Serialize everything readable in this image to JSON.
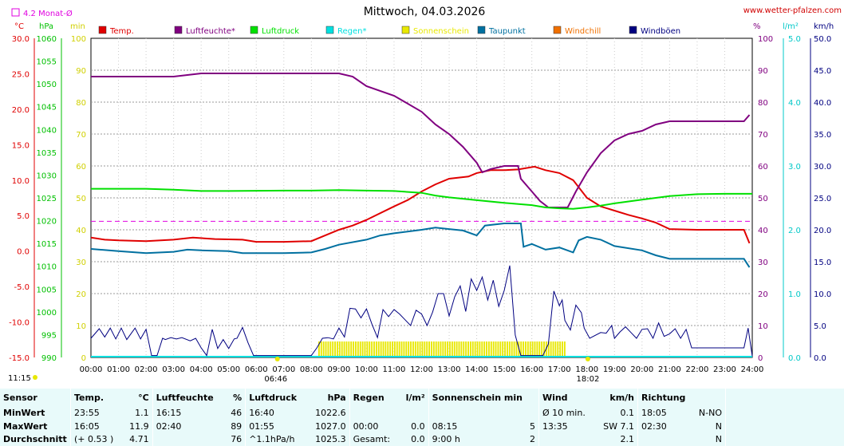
{
  "header": {
    "title": "Mittwoch, 04.03.2026",
    "site": "www.wetter-pfalzen.com",
    "monthly_avg_label": "4.2 Monat-Ø"
  },
  "units": {
    "temp": "°C",
    "pressure": "hPa",
    "minutes": "min",
    "percent": "%",
    "rain": "l/m²",
    "wind": "km/h"
  },
  "legend": [
    {
      "label": "Temp.",
      "color": "#e00000"
    },
    {
      "label": "Luftfeuchte*",
      "color": "#800080"
    },
    {
      "label": "Luftdruck",
      "color": "#00e000"
    },
    {
      "label": "Regen*",
      "color": "#00e0e0"
    },
    {
      "label": "Sonnenschein",
      "color": "#e8e800"
    },
    {
      "label": "Taupunkt",
      "color": "#0070a0"
    },
    {
      "label": "Windchill",
      "color": "#f07000"
    },
    {
      "label": "Windböen",
      "color": "#000080"
    }
  ],
  "axes": {
    "temp_ticks": [
      "30.0",
      "25.0",
      "20.0",
      "15.0",
      "10.0",
      "5.0",
      "0.0",
      "-5.0",
      "-10.0",
      "-15.0"
    ],
    "pressure_ticks": [
      "1060",
      "1055",
      "1050",
      "1045",
      "1040",
      "1035",
      "1030",
      "1025",
      "1020",
      "1015",
      "1010",
      "1005",
      "1000",
      "995",
      "990"
    ],
    "minutes_ticks": [
      "100",
      "90",
      "80",
      "70",
      "60",
      "50",
      "40",
      "30",
      "20",
      "10",
      "0"
    ],
    "percent_ticks": [
      "100",
      "90",
      "80",
      "70",
      "60",
      "50",
      "40",
      "30",
      "20",
      "10",
      "0"
    ],
    "rain_ticks": [
      "5.0",
      "4.0",
      "3.0",
      "2.0",
      "1.0",
      "0.0"
    ],
    "wind_ticks": [
      "50.0",
      "45.0",
      "40.0",
      "35.0",
      "30.0",
      "25.0",
      "20.0",
      "15.0",
      "10.0",
      "5.0",
      "0.0"
    ],
    "time_ticks": [
      "00:00",
      "01:00",
      "02:00",
      "03:00",
      "04:00",
      "05:00",
      "06:00",
      "07:00",
      "08:00",
      "09:00",
      "10:00",
      "11:00",
      "12:00",
      "13:00",
      "14:00",
      "15:00",
      "16:00",
      "17:00",
      "18:00",
      "19:00",
      "20:00",
      "21:00",
      "22:00",
      "23:00",
      "24:00"
    ],
    "sunrise": "06:46",
    "sunset": "18:02",
    "moonrise": "11:15"
  },
  "chart_data": {
    "type": "line",
    "title": "Mittwoch, 04.03.2026",
    "xlim": [
      0,
      24
    ],
    "temp_ylim": [
      -15,
      30
    ],
    "monthly_avg_temp": 4.2,
    "series": [
      {
        "name": "Temp.",
        "color": "#e00000",
        "axis": "temp",
        "points": [
          [
            0,
            1.9
          ],
          [
            0.5,
            1.6
          ],
          [
            1,
            1.5
          ],
          [
            2,
            1.4
          ],
          [
            3,
            1.6
          ],
          [
            3.7,
            1.9
          ],
          [
            4.5,
            1.7
          ],
          [
            5.5,
            1.6
          ],
          [
            6,
            1.3
          ],
          [
            7,
            1.3
          ],
          [
            8,
            1.4
          ],
          [
            8.5,
            2.2
          ],
          [
            9,
            3.0
          ],
          [
            9.5,
            3.6
          ],
          [
            10,
            4.4
          ],
          [
            11,
            6.3
          ],
          [
            11.5,
            7.2
          ],
          [
            12,
            8.4
          ],
          [
            12.5,
            9.4
          ],
          [
            13,
            10.2
          ],
          [
            13.7,
            10.5
          ],
          [
            14,
            11.0
          ],
          [
            14.5,
            11.4
          ],
          [
            15,
            11.4
          ],
          [
            15.5,
            11.5
          ],
          [
            16.1,
            11.9
          ],
          [
            16.5,
            11.4
          ],
          [
            17,
            11.0
          ],
          [
            17.5,
            10.0
          ],
          [
            18,
            7.5
          ],
          [
            18.5,
            6.3
          ],
          [
            19,
            5.7
          ],
          [
            19.5,
            5.1
          ],
          [
            20,
            4.6
          ],
          [
            20.5,
            4.0
          ],
          [
            21,
            3.1
          ],
          [
            22,
            3.0
          ],
          [
            23,
            3.0
          ],
          [
            23.7,
            3.0
          ],
          [
            23.9,
            1.1
          ]
        ]
      },
      {
        "name": "Luftfeuchte*",
        "color": "#800080",
        "axis": "percent",
        "points": [
          [
            0,
            88
          ],
          [
            3,
            88
          ],
          [
            3.5,
            88.5
          ],
          [
            4,
            89
          ],
          [
            9,
            89
          ],
          [
            9.5,
            88
          ],
          [
            10,
            85
          ],
          [
            11,
            82
          ],
          [
            12,
            77
          ],
          [
            12.5,
            73
          ],
          [
            13,
            70
          ],
          [
            13.5,
            66
          ],
          [
            14,
            61
          ],
          [
            14.2,
            58
          ],
          [
            14.5,
            59
          ],
          [
            15,
            60
          ],
          [
            15.5,
            60
          ],
          [
            15.6,
            56
          ],
          [
            16,
            52
          ],
          [
            16.3,
            49
          ],
          [
            16.6,
            47
          ],
          [
            17,
            47
          ],
          [
            17.3,
            47
          ],
          [
            17.6,
            52
          ],
          [
            18,
            58
          ],
          [
            18.5,
            64
          ],
          [
            19,
            68
          ],
          [
            19.5,
            70
          ],
          [
            20,
            71
          ],
          [
            20.5,
            73
          ],
          [
            21,
            74
          ],
          [
            21.5,
            74
          ],
          [
            22,
            74
          ],
          [
            23,
            74
          ],
          [
            23.7,
            74
          ],
          [
            23.9,
            76
          ]
        ]
      },
      {
        "name": "Luftdruck",
        "color": "#00e000",
        "axis": "pressure",
        "points": [
          [
            0,
            1027.0
          ],
          [
            2,
            1027.0
          ],
          [
            3,
            1026.8
          ],
          [
            4,
            1026.5
          ],
          [
            5,
            1026.5
          ],
          [
            7,
            1026.6
          ],
          [
            8,
            1026.6
          ],
          [
            9,
            1026.7
          ],
          [
            10,
            1026.6
          ],
          [
            11,
            1026.5
          ],
          [
            12,
            1026.1
          ],
          [
            12.5,
            1025.5
          ],
          [
            13,
            1025.1
          ],
          [
            14,
            1024.5
          ],
          [
            15,
            1023.9
          ],
          [
            16,
            1023.4
          ],
          [
            16.5,
            1022.9
          ],
          [
            17,
            1022.7
          ],
          [
            17.5,
            1022.6
          ],
          [
            18,
            1022.9
          ],
          [
            18.5,
            1023.3
          ],
          [
            19,
            1023.8
          ],
          [
            20,
            1024.6
          ],
          [
            21,
            1025.4
          ],
          [
            22,
            1025.8
          ],
          [
            23,
            1025.9
          ],
          [
            24,
            1025.9
          ]
        ]
      },
      {
        "name": "Taupunkt",
        "color": "#0070a0",
        "axis": "temp",
        "points": [
          [
            0,
            0.3
          ],
          [
            1,
            0.0
          ],
          [
            2,
            -0.3
          ],
          [
            3,
            -0.1
          ],
          [
            3.5,
            0.2
          ],
          [
            4,
            0.1
          ],
          [
            5,
            0.0
          ],
          [
            5.5,
            -0.3
          ],
          [
            6,
            -0.3
          ],
          [
            7,
            -0.3
          ],
          [
            8,
            -0.2
          ],
          [
            8.5,
            0.3
          ],
          [
            9,
            0.9
          ],
          [
            10,
            1.6
          ],
          [
            10.5,
            2.2
          ],
          [
            11,
            2.5
          ],
          [
            12,
            3.0
          ],
          [
            12.5,
            3.3
          ],
          [
            13,
            3.1
          ],
          [
            13.5,
            2.9
          ],
          [
            14,
            2.2
          ],
          [
            14.3,
            3.6
          ],
          [
            15,
            3.9
          ],
          [
            15.6,
            3.9
          ],
          [
            15.7,
            0.6
          ],
          [
            16,
            1.0
          ],
          [
            16.5,
            0.2
          ],
          [
            17,
            0.5
          ],
          [
            17.5,
            -0.2
          ],
          [
            17.7,
            1.5
          ],
          [
            18,
            2.0
          ],
          [
            18.5,
            1.6
          ],
          [
            19,
            0.7
          ],
          [
            20,
            0.1
          ],
          [
            20.5,
            -0.6
          ],
          [
            21,
            -1.1
          ],
          [
            22,
            -1.1
          ],
          [
            23,
            -1.1
          ],
          [
            23.7,
            -1.1
          ],
          [
            23.9,
            -2.3
          ]
        ]
      },
      {
        "name": "Windböen",
        "color": "#000080",
        "axis": "wind",
        "points": [
          [
            0,
            3.0
          ],
          [
            0.3,
            4.5
          ],
          [
            0.5,
            3.2
          ],
          [
            0.7,
            4.6
          ],
          [
            0.9,
            2.9
          ],
          [
            1.1,
            4.6
          ],
          [
            1.3,
            2.8
          ],
          [
            1.6,
            4.6
          ],
          [
            1.8,
            2.9
          ],
          [
            2.0,
            4.4
          ],
          [
            2.2,
            0.3
          ],
          [
            2.4,
            0.3
          ],
          [
            2.6,
            3.0
          ],
          [
            2.7,
            2.8
          ],
          [
            2.9,
            3.1
          ],
          [
            3.1,
            2.9
          ],
          [
            3.3,
            3.1
          ],
          [
            3.6,
            2.6
          ],
          [
            3.8,
            3.0
          ],
          [
            4.0,
            1.5
          ],
          [
            4.2,
            0.3
          ],
          [
            4.4,
            4.4
          ],
          [
            4.6,
            1.4
          ],
          [
            4.8,
            2.8
          ],
          [
            5.0,
            1.4
          ],
          [
            5.2,
            2.9
          ],
          [
            5.3,
            3.0
          ],
          [
            5.5,
            4.7
          ],
          [
            5.7,
            2.3
          ],
          [
            5.9,
            0.3
          ],
          [
            6.3,
            0.3
          ],
          [
            8.0,
            0.3
          ],
          [
            8.2,
            1.5
          ],
          [
            8.4,
            3.0
          ],
          [
            8.6,
            3.1
          ],
          [
            8.8,
            2.9
          ],
          [
            9.0,
            4.6
          ],
          [
            9.2,
            3.2
          ],
          [
            9.4,
            7.7
          ],
          [
            9.6,
            7.6
          ],
          [
            9.8,
            6.2
          ],
          [
            10.0,
            7.6
          ],
          [
            10.2,
            5.2
          ],
          [
            10.4,
            3.1
          ],
          [
            10.6,
            7.5
          ],
          [
            10.8,
            6.4
          ],
          [
            11.0,
            7.5
          ],
          [
            11.2,
            6.8
          ],
          [
            11.4,
            5.9
          ],
          [
            11.6,
            5.0
          ],
          [
            11.8,
            7.4
          ],
          [
            12.0,
            6.8
          ],
          [
            12.2,
            5.0
          ],
          [
            12.4,
            7.1
          ],
          [
            12.6,
            10.0
          ],
          [
            12.8,
            10.0
          ],
          [
            13.0,
            6.5
          ],
          [
            13.2,
            9.5
          ],
          [
            13.4,
            11.2
          ],
          [
            13.6,
            7.2
          ],
          [
            13.8,
            12.3
          ],
          [
            14.0,
            10.5
          ],
          [
            14.2,
            12.6
          ],
          [
            14.4,
            9.0
          ],
          [
            14.6,
            12.1
          ],
          [
            14.8,
            8.0
          ],
          [
            15.0,
            10.5
          ],
          [
            15.2,
            14.4
          ],
          [
            15.4,
            3.5
          ],
          [
            15.6,
            0.3
          ],
          [
            16.0,
            0.3
          ],
          [
            16.4,
            0.3
          ],
          [
            16.6,
            2.1
          ],
          [
            16.8,
            10.4
          ],
          [
            17.0,
            8.1
          ],
          [
            17.1,
            9.0
          ],
          [
            17.2,
            5.8
          ],
          [
            17.4,
            4.3
          ],
          [
            17.6,
            8.2
          ],
          [
            17.8,
            7.0
          ],
          [
            17.9,
            4.6
          ],
          [
            18.1,
            3.0
          ],
          [
            18.5,
            3.9
          ],
          [
            18.7,
            3.8
          ],
          [
            18.9,
            5.0
          ],
          [
            19.0,
            3.0
          ],
          [
            19.2,
            4.0
          ],
          [
            19.4,
            4.8
          ],
          [
            19.6,
            3.9
          ],
          [
            19.8,
            3.0
          ],
          [
            20.0,
            4.4
          ],
          [
            20.2,
            4.5
          ],
          [
            20.4,
            3.0
          ],
          [
            20.6,
            5.4
          ],
          [
            20.8,
            3.3
          ],
          [
            21.0,
            3.7
          ],
          [
            21.2,
            4.5
          ],
          [
            21.4,
            3.0
          ],
          [
            21.6,
            4.4
          ],
          [
            21.8,
            1.5
          ],
          [
            22.0,
            1.5
          ],
          [
            23.0,
            1.5
          ],
          [
            23.7,
            1.5
          ],
          [
            23.85,
            4.6
          ],
          [
            24,
            0.2
          ]
        ]
      }
    ],
    "sunshine_bars": {
      "name": "Sonnenschein",
      "color": "#e8e800",
      "from": 8.25,
      "to": 17.2,
      "max": 5
    },
    "rain": {
      "name": "Regen*",
      "color": "#00e0e0",
      "total": 0.0
    }
  },
  "stats": {
    "headers": {
      "sensor": "Sensor",
      "temp": "Temp.",
      "temp_unit": "°C",
      "hum": "Luftfeuchte",
      "hum_unit": "%",
      "press": "Luftdruck",
      "press_unit": "hPa",
      "rain": "Regen",
      "rain_unit": "l/m²",
      "sun": "Sonnenschein min",
      "wind": "Wind",
      "wind_unit": "km/h",
      "dir": "Richtung"
    },
    "rows": [
      {
        "label": "MinWert",
        "temp_time": "23:55",
        "temp_val": "1.1",
        "hum_time": "16:15",
        "hum_val": "46",
        "press_time": "16:40",
        "press_val": "1022.6",
        "rain_time": "",
        "rain_val": "",
        "sun_time": "",
        "sun_val": "",
        "wind_time": "Ø 10 min.",
        "wind_val": "0.1",
        "dir_time": "18:05",
        "dir_val": "N-NO"
      },
      {
        "label": "MaxWert",
        "temp_time": "16:05",
        "temp_val": "11.9",
        "hum_time": "02:40",
        "hum_val": "89",
        "press_time": "01:55",
        "press_val": "1027.0",
        "rain_time": "00:00",
        "rain_val": "0.0",
        "sun_time": "08:15",
        "sun_val": "5",
        "wind_time": "13:35",
        "wind_val": "SW 7.1",
        "dir_time": "02:30",
        "dir_val": "N"
      },
      {
        "label": "Durchschnitt",
        "temp_time": "(+ 0.53 )",
        "temp_val": "4.71",
        "hum_time": "",
        "hum_val": "76",
        "press_time": "^1.1hPa/h",
        "press_val": "1025.3",
        "rain_time": "Gesamt:",
        "rain_val": "0.0",
        "sun_time": "9:00 h",
        "sun_val": "2",
        "wind_time": "",
        "wind_val": "2.1",
        "dir_time": "",
        "dir_val": "N"
      }
    ]
  }
}
